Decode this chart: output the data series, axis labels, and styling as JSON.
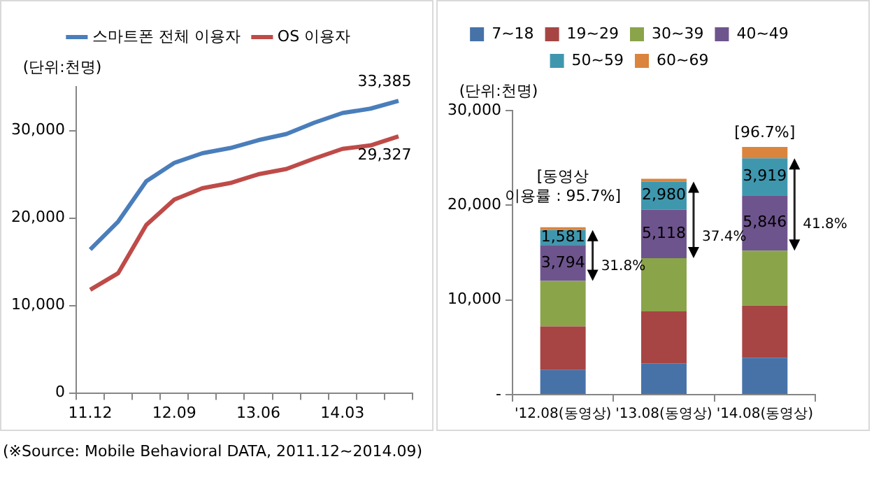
{
  "chart_data": [
    {
      "type": "line",
      "ylabel": "(단위:천명)",
      "categories": [
        "11.12",
        null,
        null,
        "12.09",
        null,
        null,
        "13.06",
        null,
        null,
        "14.03",
        null,
        null
      ],
      "series": [
        {
          "name": "스마트폰 전체 이용자",
          "color": "#4a7ebb",
          "values": [
            16400,
            19600,
            24200,
            26300,
            27400,
            28000,
            28900,
            29600,
            30900,
            32000,
            32500,
            33385
          ],
          "value_labels": [
            null,
            null,
            null,
            null,
            null,
            null,
            null,
            null,
            null,
            null,
            null,
            "33,385"
          ]
        },
        {
          "name": "OS 이용자",
          "color": "#be4b48",
          "values": [
            11800,
            13700,
            19200,
            22100,
            23400,
            24000,
            25000,
            25600,
            26800,
            27900,
            28300,
            29327
          ],
          "value_labels": [
            null,
            null,
            null,
            null,
            null,
            null,
            null,
            null,
            null,
            null,
            null,
            "29,327"
          ]
        }
      ],
      "ylim": [
        0,
        35000
      ],
      "yticks": [
        0,
        {
          "value": 10000,
          "label": "10,000"
        },
        {
          "value": 20000,
          "label": "20,000"
        },
        {
          "value": 30000,
          "label": "30,000"
        }
      ],
      "grid": false,
      "legend": "top",
      "marker": "none"
    },
    {
      "type": "bar",
      "stacked": true,
      "ylabel": "(단위:천명)",
      "categories": [
        "'12.08(동영상)",
        "'13.08(동영상)",
        "'14.08(동영상)"
      ],
      "series": [
        {
          "name": "7~18",
          "color": "#4672a8",
          "values": [
            2600,
            3300,
            3900
          ]
        },
        {
          "name": "19~29",
          "color": "#a64543",
          "values": [
            4600,
            5500,
            5500
          ]
        },
        {
          "name": "30~39",
          "color": "#8aa44a",
          "values": [
            4800,
            5600,
            5800
          ]
        },
        {
          "name": "40~49",
          "color": "#6e548d",
          "values": [
            3794,
            5118,
            5846
          ],
          "value_labels": [
            "3,794",
            "5,118",
            "5,846"
          ]
        },
        {
          "name": "50~59",
          "color": "#3f97ae",
          "values": [
            1581,
            2980,
            3919
          ],
          "value_labels": [
            "1,581",
            "2,980",
            "3,919"
          ]
        },
        {
          "name": "60~69",
          "color": "#db843d",
          "values": [
            300,
            300,
            1200
          ]
        }
      ],
      "ylim": [
        0,
        30000
      ],
      "yticks": [
        {
          "value": 0,
          "label": "-"
        },
        {
          "value": 10000,
          "label": "10,000"
        },
        {
          "value": 20000,
          "label": "20,000"
        },
        {
          "value": 30000,
          "label": "30,000"
        }
      ],
      "grid": false,
      "legend": "top",
      "annotations": [
        "[동영상\n이용률 : 95.7%]",
        "31.8%",
        "37.4%",
        "41.8%",
        "[96.7%]",
        "(※Source: Mobile Behavioral DATA, 2011.12~2014.09)"
      ]
    }
  ]
}
